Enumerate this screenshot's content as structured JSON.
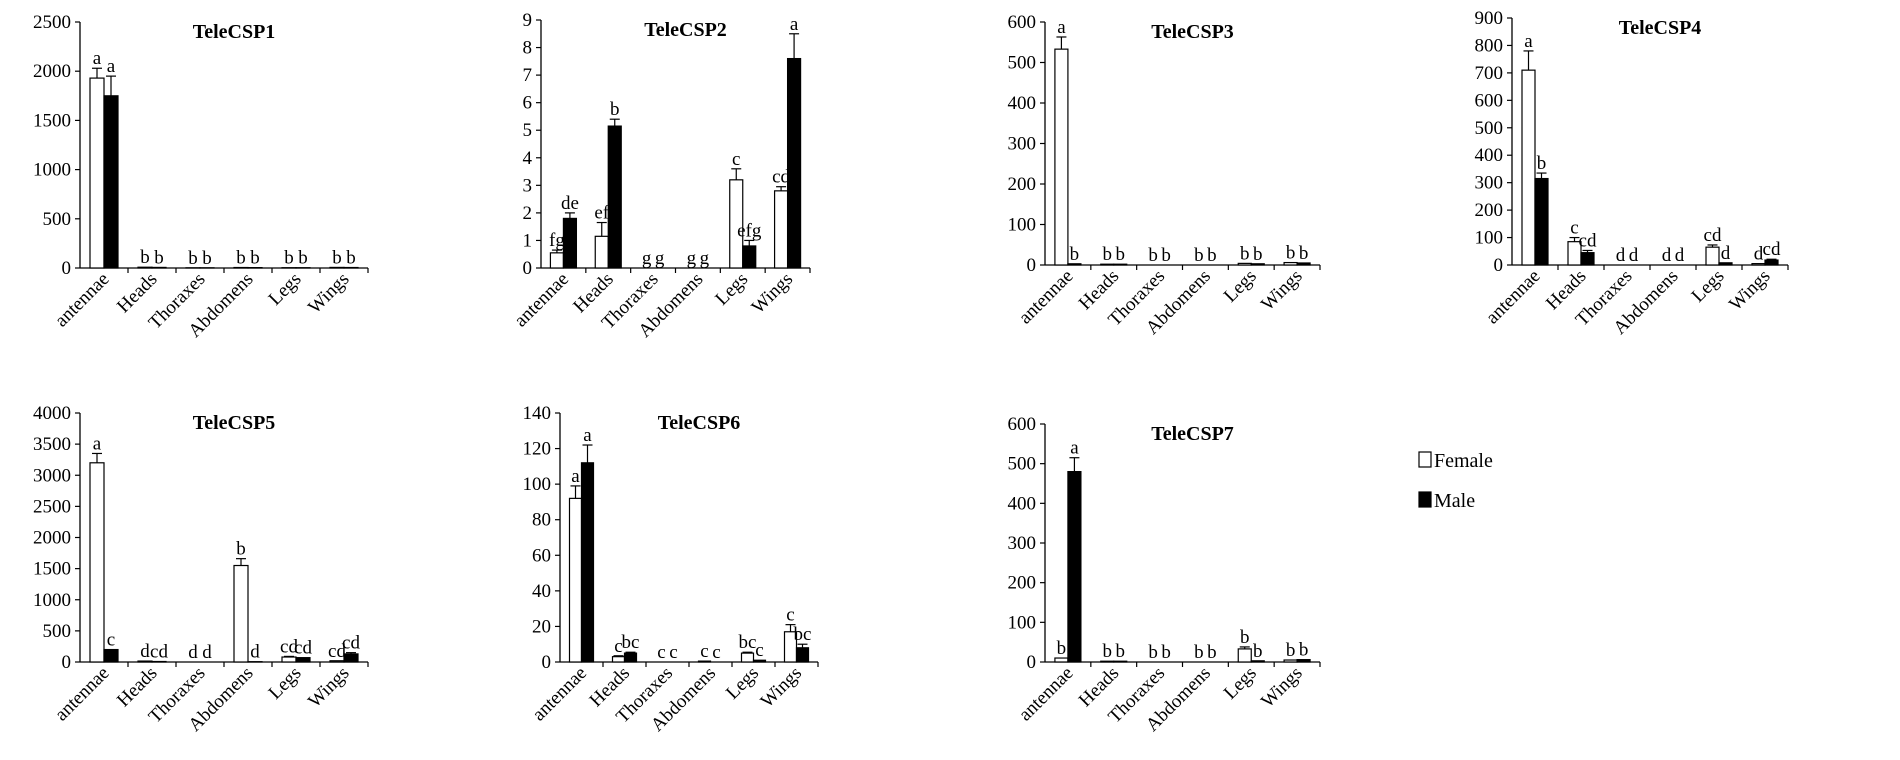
{
  "legend": {
    "female": {
      "label": "Female",
      "color": "#ffffff"
    },
    "male": {
      "label": "Male",
      "color": "#000000"
    }
  },
  "chart_data": [
    {
      "type": "bar",
      "title": "TeleCSP1",
      "categories": [
        "antennae",
        "Heads",
        "Thoraxes",
        "Abdomens",
        "Legs",
        "Wings"
      ],
      "ylim": [
        0,
        2500
      ],
      "yticks": [
        0,
        500,
        1000,
        1500,
        2000,
        2500
      ],
      "series": [
        {
          "name": "Female",
          "values": [
            1930,
            8,
            2,
            5,
            3,
            6
          ],
          "errors": [
            100,
            0,
            0,
            0,
            0,
            0
          ],
          "labels": [
            "a",
            "b",
            "b",
            "b",
            "b",
            "b"
          ]
        },
        {
          "name": "Male",
          "values": [
            1750,
            6,
            2,
            4,
            3,
            5
          ],
          "errors": [
            200,
            0,
            0,
            0,
            0,
            0
          ],
          "labels": [
            "a",
            "b",
            "b",
            "b",
            "b",
            "b"
          ]
        }
      ]
    },
    {
      "type": "bar",
      "title": "TeleCSP2",
      "categories": [
        "antennae",
        "Heads",
        "Thoraxes",
        "Abdomens",
        "Legs",
        "Wings"
      ],
      "ylim": [
        0,
        9
      ],
      "yticks": [
        0,
        1,
        2,
        3,
        4,
        5,
        6,
        7,
        8,
        9
      ],
      "series": [
        {
          "name": "Female",
          "values": [
            0.55,
            1.15,
            0,
            0,
            3.2,
            2.8
          ],
          "errors": [
            0.1,
            0.5,
            0,
            0,
            0.4,
            0.15
          ],
          "labels": [
            "fg",
            "ef",
            "g",
            "g",
            "c",
            "cd"
          ]
        },
        {
          "name": "Male",
          "values": [
            1.8,
            5.15,
            0,
            0,
            0.8,
            7.6
          ],
          "errors": [
            0.2,
            0.25,
            0,
            0,
            0.2,
            0.9
          ],
          "labels": [
            "de",
            "b",
            "g",
            "g",
            "efg",
            "a"
          ]
        }
      ]
    },
    {
      "type": "bar",
      "title": "TeleCSP3",
      "categories": [
        "antennae",
        "Heads",
        "Thoraxes",
        "Abdomens",
        "Legs",
        "Wings"
      ],
      "ylim": [
        0,
        600
      ],
      "yticks": [
        0,
        100,
        200,
        300,
        400,
        500,
        600
      ],
      "series": [
        {
          "name": "Female",
          "values": [
            533,
            2,
            0,
            0,
            4,
            6
          ],
          "errors": [
            30,
            0,
            0,
            0,
            0,
            0
          ],
          "labels": [
            "a",
            "b",
            "b",
            "b",
            "b",
            "b"
          ]
        },
        {
          "name": "Male",
          "values": [
            3,
            2,
            0,
            0,
            3,
            5
          ],
          "errors": [
            0,
            0,
            0,
            0,
            0,
            0
          ],
          "labels": [
            "b",
            "b",
            "b",
            "b",
            "b",
            "b"
          ]
        }
      ]
    },
    {
      "type": "bar",
      "title": "TeleCSP4",
      "categories": [
        "antennae",
        "Heads",
        "Thoraxes",
        "Abdomens",
        "Legs",
        "Wings"
      ],
      "ylim": [
        0,
        900
      ],
      "yticks": [
        0,
        100,
        200,
        300,
        400,
        500,
        600,
        700,
        800,
        900
      ],
      "series": [
        {
          "name": "Female",
          "values": [
            710,
            85,
            0,
            0,
            65,
            5
          ],
          "errors": [
            70,
            15,
            0,
            0,
            8,
            0
          ],
          "labels": [
            "a",
            "c",
            "d",
            "d",
            "cd",
            "d"
          ]
        },
        {
          "name": "Male",
          "values": [
            315,
            45,
            0,
            0,
            8,
            18
          ],
          "errors": [
            20,
            8,
            0,
            0,
            0,
            3
          ],
          "labels": [
            "b",
            "cd",
            "d",
            "d",
            "d",
            "cd"
          ]
        }
      ]
    },
    {
      "type": "bar",
      "title": "TeleCSP5",
      "categories": [
        "antennae",
        "Heads",
        "Thoraxes",
        "Abdomens",
        "Legs",
        "Wings"
      ],
      "ylim": [
        0,
        4000
      ],
      "yticks": [
        0,
        500,
        1000,
        1500,
        2000,
        2500,
        3000,
        3500,
        4000
      ],
      "series": [
        {
          "name": "Female",
          "values": [
            3200,
            15,
            0,
            1550,
            80,
            20
          ],
          "errors": [
            150,
            0,
            0,
            110,
            10,
            0
          ],
          "labels": [
            "a",
            "d",
            "d",
            "b",
            "cd",
            "cd"
          ]
        },
        {
          "name": "Male",
          "values": [
            200,
            8,
            0,
            5,
            70,
            130
          ],
          "errors": [
            0,
            0,
            0,
            0,
            0,
            20
          ],
          "labels": [
            "c",
            "cd",
            "d",
            "d",
            "cd",
            "cd"
          ]
        }
      ]
    },
    {
      "type": "bar",
      "title": "TeleCSP6",
      "categories": [
        "antennae",
        "Heads",
        "Thoraxes",
        "Abdomens",
        "Legs",
        "Wings"
      ],
      "ylim": [
        0,
        140
      ],
      "yticks": [
        0,
        20,
        40,
        60,
        80,
        100,
        120,
        140
      ],
      "series": [
        {
          "name": "Female",
          "values": [
            92,
            3,
            0,
            0.5,
            5,
            17
          ],
          "errors": [
            7,
            0.5,
            0,
            0,
            0.5,
            4
          ],
          "labels": [
            "a",
            "c",
            "c",
            "c",
            "bc",
            "c"
          ]
        },
        {
          "name": "Male",
          "values": [
            112,
            5,
            0,
            0,
            1,
            8
          ],
          "errors": [
            10,
            0.5,
            0,
            0,
            0,
            2
          ],
          "labels": [
            "a",
            "bc",
            "c",
            "c",
            "c",
            "bc"
          ]
        }
      ]
    },
    {
      "type": "bar",
      "title": "TeleCSP7",
      "categories": [
        "antennae",
        "Heads",
        "Thoraxes",
        "Abdomens",
        "Legs",
        "Wings"
      ],
      "ylim": [
        0,
        600
      ],
      "yticks": [
        0,
        100,
        200,
        300,
        400,
        500,
        600
      ],
      "series": [
        {
          "name": "Female",
          "values": [
            10,
            2,
            0,
            0,
            33,
            5
          ],
          "errors": [
            0,
            0,
            0,
            0,
            5,
            0
          ],
          "labels": [
            "b",
            "b",
            "b",
            "b",
            "b",
            "b"
          ]
        },
        {
          "name": "Male",
          "values": [
            480,
            2,
            0,
            0,
            3,
            6
          ],
          "errors": [
            35,
            0,
            0,
            0,
            0,
            0
          ],
          "labels": [
            "a",
            "b",
            "b",
            "b",
            "b",
            "b"
          ]
        }
      ]
    }
  ]
}
